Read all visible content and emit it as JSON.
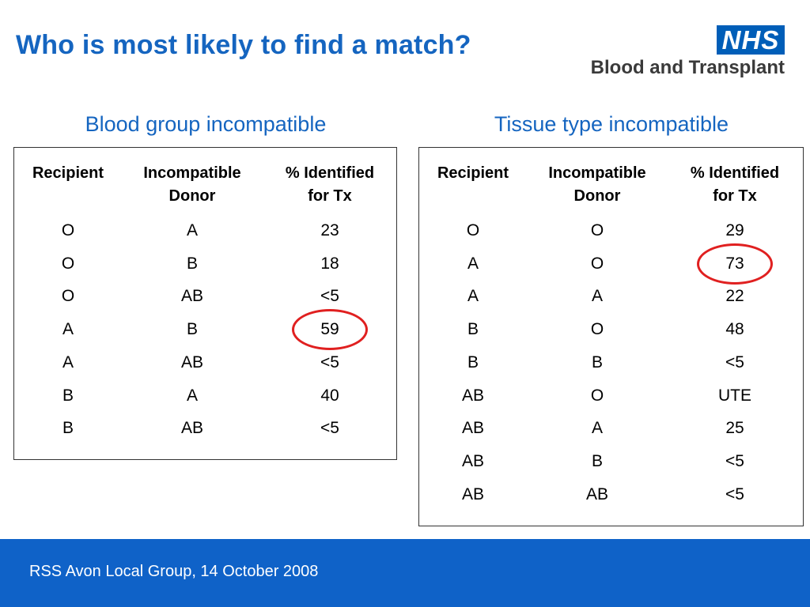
{
  "title": "Who is most likely to find a match?",
  "logo": {
    "box_text": "NHS",
    "sub_text": "Blood and Transplant",
    "brand_color": "#005EB8"
  },
  "accent_color": "#1565C0",
  "highlight_color": "#E02020",
  "left": {
    "heading": "Blood group incompatible",
    "headers": [
      "Recipient",
      "Incompatible Donor",
      "% Identified for Tx"
    ],
    "rows": [
      [
        "O",
        "A",
        "23"
      ],
      [
        "O",
        "B",
        "18"
      ],
      [
        "O",
        "AB",
        "<5"
      ],
      [
        "A",
        "B",
        "59"
      ],
      [
        "A",
        "AB",
        "<5"
      ],
      [
        "B",
        "A",
        "40"
      ],
      [
        "B",
        "AB",
        "<5"
      ]
    ],
    "highlighted_row": 3
  },
  "right": {
    "heading": "Tissue type incompatible",
    "headers": [
      "Recipient",
      "Incompatible Donor",
      "% Identified for Tx"
    ],
    "rows": [
      [
        "O",
        "O",
        "29"
      ],
      [
        "A",
        "O",
        "73"
      ],
      [
        "A",
        "A",
        "22"
      ],
      [
        "B",
        "O",
        "48"
      ],
      [
        "B",
        "B",
        "<5"
      ],
      [
        "AB",
        "O",
        "UTE"
      ],
      [
        "AB",
        "A",
        "25"
      ],
      [
        "AB",
        "B",
        "<5"
      ],
      [
        "AB",
        "AB",
        "<5"
      ]
    ],
    "highlighted_row": 1
  },
  "footer": {
    "text": "RSS Avon Local Group, 14 October 2008"
  }
}
